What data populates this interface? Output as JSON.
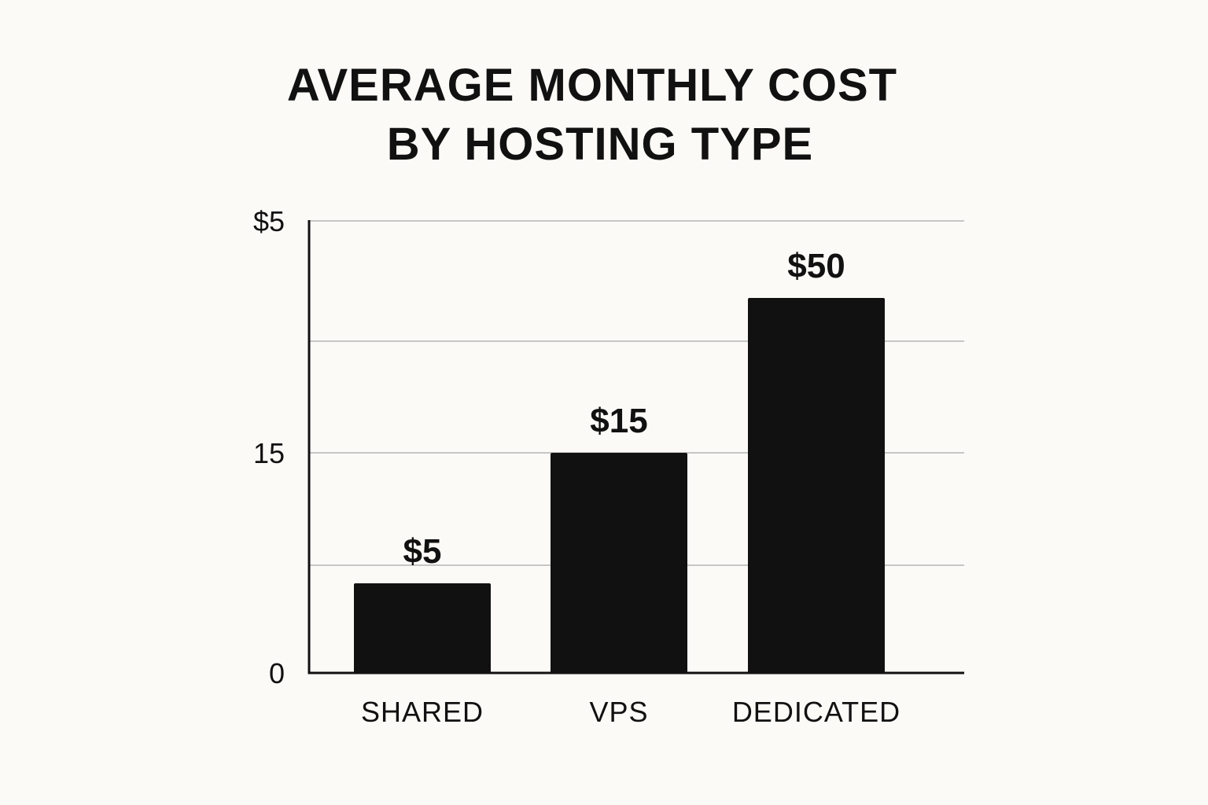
{
  "chart_data": {
    "type": "bar",
    "title_lines": [
      "AVERAGE MONTHLY COST",
      "BY HOSTING TYPE"
    ],
    "categories": [
      "SHARED",
      "VPS",
      "DEDICATED"
    ],
    "values": [
      5,
      15,
      50
    ],
    "value_labels": [
      "$5",
      "$15",
      "$50"
    ],
    "y_ticks": [
      {
        "label": "$5",
        "gridline": true
      },
      {
        "label": "",
        "gridline": true
      },
      {
        "label": "15",
        "gridline": true
      },
      {
        "label": "",
        "gridline": true
      },
      {
        "label": "0",
        "gridline": false
      }
    ],
    "xlabel": "",
    "ylabel": "",
    "grid": true,
    "legend": "none",
    "colors": {
      "background": "#fbfaf7",
      "bar": "#111111",
      "grid": "#c6c6c6",
      "text": "#111111"
    }
  }
}
